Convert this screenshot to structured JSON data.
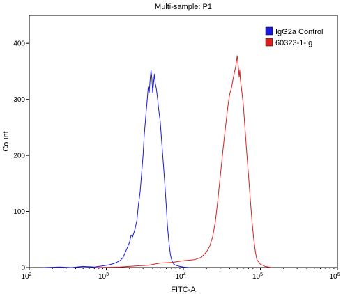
{
  "chart_data": {
    "type": "line",
    "title": "Multi-sample: P1",
    "xlabel": "FITC-A",
    "ylabel": "Count",
    "xscale": "log",
    "xlim": [
      100,
      1000000
    ],
    "ylim": [
      0,
      450
    ],
    "grid": false,
    "legend_position": "top-right",
    "y_ticks": [
      0,
      100,
      200,
      300,
      400
    ],
    "x_ticks": [
      {
        "value": 100,
        "base": "10",
        "exp": "2"
      },
      {
        "value": 1000,
        "base": "10",
        "exp": "3"
      },
      {
        "value": 10000,
        "base": "10",
        "exp": "4"
      },
      {
        "value": 100000,
        "base": "10",
        "exp": "5"
      },
      {
        "value": 1000000,
        "base": "10",
        "exp": "6"
      }
    ],
    "series": [
      {
        "name": "IgG2a Control",
        "color": "#1a1adb",
        "points": [
          [
            150,
            0
          ],
          [
            250,
            1
          ],
          [
            350,
            0
          ],
          [
            500,
            2
          ],
          [
            700,
            1
          ],
          [
            900,
            3
          ],
          [
            1100,
            5
          ],
          [
            1300,
            8
          ],
          [
            1500,
            12
          ],
          [
            1650,
            18
          ],
          [
            1800,
            30
          ],
          [
            2000,
            45
          ],
          [
            2100,
            58
          ],
          [
            2200,
            55
          ],
          [
            2350,
            68
          ],
          [
            2500,
            85
          ],
          [
            2600,
            110
          ],
          [
            2750,
            135
          ],
          [
            2900,
            175
          ],
          [
            3000,
            200
          ],
          [
            3100,
            235
          ],
          [
            3250,
            270
          ],
          [
            3400,
            300
          ],
          [
            3500,
            322
          ],
          [
            3600,
            312
          ],
          [
            3700,
            335
          ],
          [
            3800,
            352
          ],
          [
            3900,
            338
          ],
          [
            4000,
            312
          ],
          [
            4100,
            328
          ],
          [
            4200,
            345
          ],
          [
            4300,
            330
          ],
          [
            4450,
            320
          ],
          [
            4600,
            305
          ],
          [
            4800,
            280
          ],
          [
            5000,
            262
          ],
          [
            5200,
            230
          ],
          [
            5400,
            200
          ],
          [
            5600,
            170
          ],
          [
            5800,
            140
          ],
          [
            6000,
            110
          ],
          [
            6200,
            75
          ],
          [
            6500,
            45
          ],
          [
            6800,
            22
          ],
          [
            7100,
            12
          ],
          [
            7500,
            6
          ],
          [
            8000,
            4
          ],
          [
            9000,
            2
          ],
          [
            10000,
            1
          ],
          [
            12000,
            0
          ]
        ]
      },
      {
        "name": "60323-1-Ig",
        "color": "#d62020",
        "points": [
          [
            700,
            0
          ],
          [
            1500,
            1
          ],
          [
            2500,
            3
          ],
          [
            3500,
            4
          ],
          [
            5000,
            8
          ],
          [
            7000,
            9
          ],
          [
            10000,
            12
          ],
          [
            14000,
            14
          ],
          [
            17000,
            18
          ],
          [
            20000,
            28
          ],
          [
            22000,
            38
          ],
          [
            24000,
            55
          ],
          [
            26000,
            82
          ],
          [
            28000,
            120
          ],
          [
            30000,
            160
          ],
          [
            32000,
            198
          ],
          [
            34000,
            232
          ],
          [
            36000,
            262
          ],
          [
            38000,
            290
          ],
          [
            40000,
            310
          ],
          [
            42000,
            320
          ],
          [
            44000,
            335
          ],
          [
            46000,
            348
          ],
          [
            48000,
            360
          ],
          [
            50000,
            378
          ],
          [
            51000,
            365
          ],
          [
            52000,
            355
          ],
          [
            53000,
            340
          ],
          [
            54000,
            352
          ],
          [
            55000,
            335
          ],
          [
            57000,
            318
          ],
          [
            60000,
            290
          ],
          [
            63000,
            250
          ],
          [
            66000,
            210
          ],
          [
            70000,
            165
          ],
          [
            74000,
            120
          ],
          [
            78000,
            80
          ],
          [
            82000,
            50
          ],
          [
            86000,
            28
          ],
          [
            90000,
            14
          ],
          [
            100000,
            6
          ],
          [
            115000,
            2
          ],
          [
            140000,
            0
          ]
        ]
      }
    ]
  }
}
